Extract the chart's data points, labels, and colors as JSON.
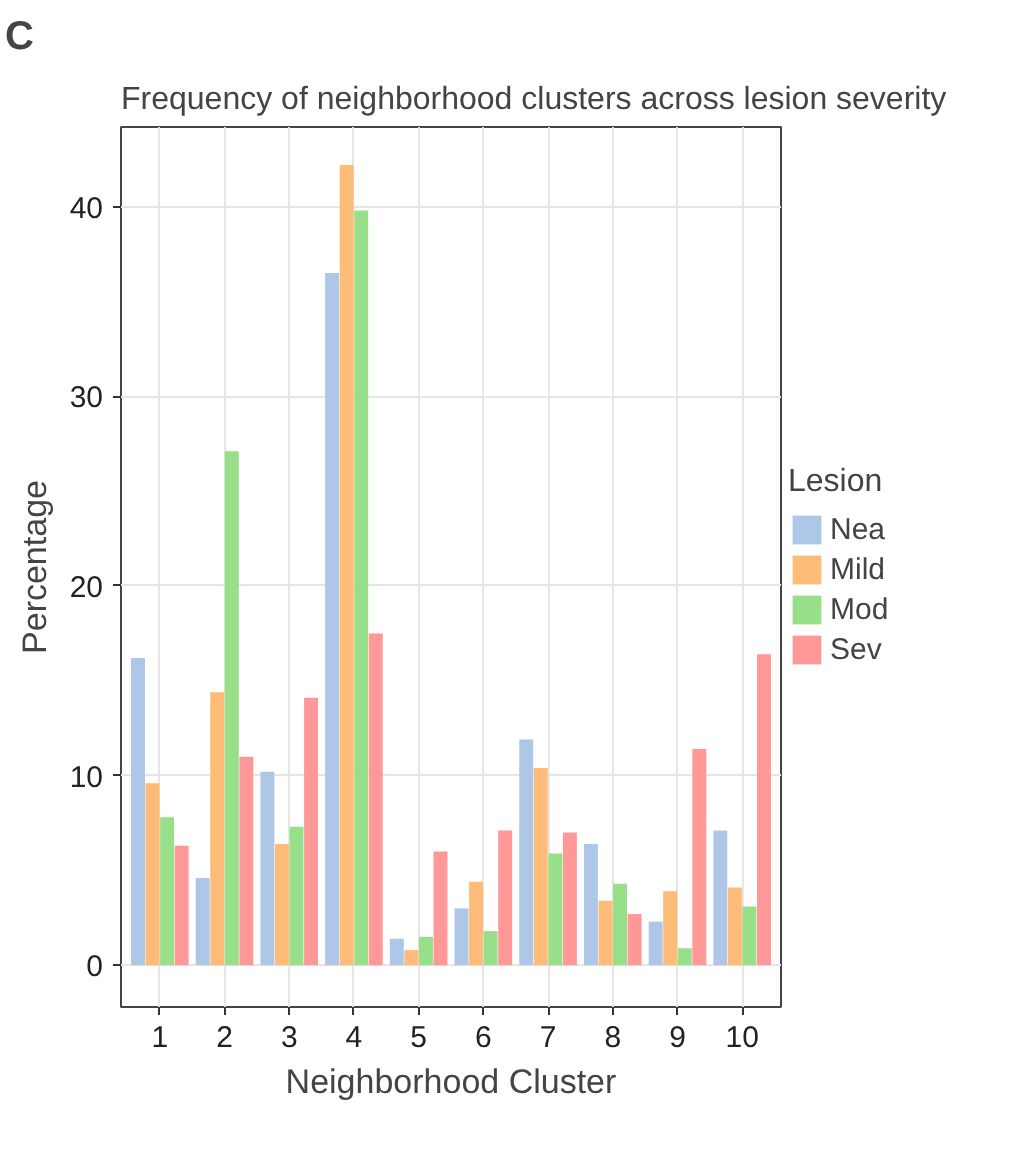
{
  "chart_data": {
    "type": "bar",
    "title": "Frequency of neighborhood clusters across lesion severity",
    "annotations": [
      "C"
    ],
    "xlabel": "Neighborhood Cluster",
    "ylabel": "Percentage",
    "legend_title": "Lesion",
    "categories": [
      "1",
      "2",
      "3",
      "4",
      "5",
      "6",
      "7",
      "8",
      "9",
      "10"
    ],
    "series": [
      {
        "name": "Nea",
        "color": "#aec7e8",
        "values": [
          16.2,
          4.6,
          10.2,
          36.5,
          1.4,
          3.0,
          11.9,
          6.4,
          2.3,
          7.1
        ]
      },
      {
        "name": "Mild",
        "color": "#ffbb78",
        "values": [
          9.6,
          14.4,
          6.4,
          42.2,
          0.8,
          4.4,
          10.4,
          3.4,
          3.9,
          4.1
        ]
      },
      {
        "name": "Mod",
        "color": "#98df8a",
        "values": [
          7.8,
          27.1,
          7.3,
          39.8,
          1.5,
          1.8,
          5.9,
          4.3,
          0.9,
          3.1
        ]
      },
      {
        "name": "Sev",
        "color": "#ff9896",
        "values": [
          6.3,
          11.0,
          14.1,
          17.5,
          6.0,
          7.1,
          7.0,
          2.7,
          11.4,
          16.4
        ]
      }
    ],
    "ylim": [
      -2.2,
      44.2
    ],
    "yticks": [
      0,
      10,
      20,
      30,
      40
    ],
    "grid": true,
    "legend": "right"
  }
}
